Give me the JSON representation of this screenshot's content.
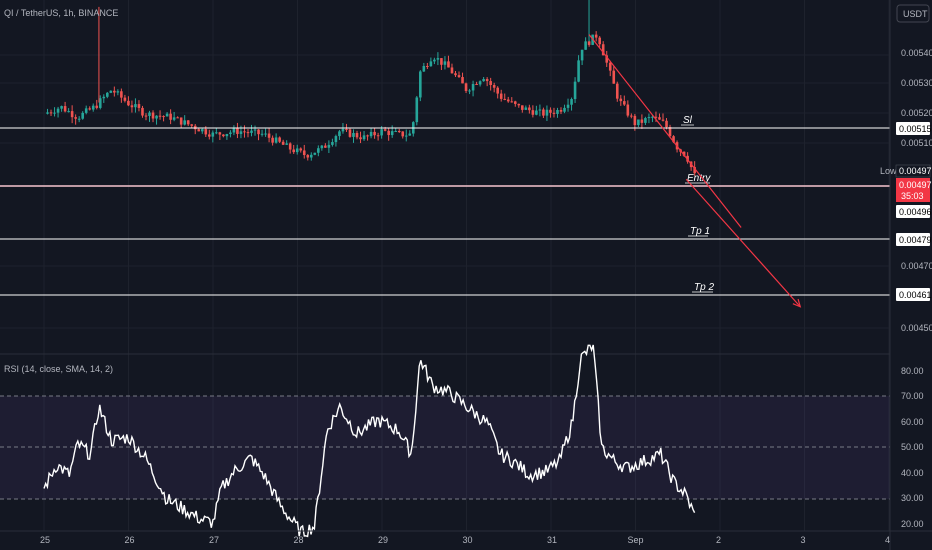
{
  "header": {
    "symbol_label": "QI / TetherUS, 1h, BINANCE",
    "currency_button": "USDT"
  },
  "price_axis": {
    "ticks": [
      "0.00540",
      "0.00530",
      "0.00520",
      "0.00510",
      "0.00470",
      "0.00450"
    ]
  },
  "levels": [
    {
      "label": "Sl",
      "price": 0.00515,
      "price_label": "0.00515"
    },
    {
      "label": "Entry",
      "price": 0.00496,
      "price_label": "0.00496"
    },
    {
      "label": "Tp 1",
      "price": 0.00479,
      "price_label": "0.00479"
    },
    {
      "label": "Tp 2",
      "price": 0.00461,
      "price_label": "0.00461"
    }
  ],
  "low_badge": {
    "label": "Low",
    "value": "0.00497"
  },
  "last_price_badge": {
    "value": "0.00497",
    "countdown": "35:03"
  },
  "rsi": {
    "title": "RSI (14, close, SMA, 14, 2)",
    "ticks": [
      "80.00",
      "70.00",
      "60.00",
      "50.00",
      "40.00",
      "30.00",
      "20.00"
    ],
    "upper_band": 70,
    "middle_band": 50,
    "lower_band": 30
  },
  "time_axis": {
    "labels": [
      "25",
      "26",
      "27",
      "28",
      "29",
      "30",
      "31",
      "Sep",
      "2",
      "3",
      "4"
    ]
  },
  "colors": {
    "background": "#131722",
    "bull": "#26a69a",
    "bear": "#ef5350",
    "level_line": "#ffffff",
    "entry_line": "#f7c5cf",
    "arrow": "#f23645",
    "rsi_line": "#ffffff",
    "rsi_band": "#7e57c2",
    "axis_text": "#b2b5be"
  },
  "chart_data": {
    "type": "candlestick",
    "price_scale": {
      "min": 0.00445,
      "max": 0.00548
    },
    "rsi_scale": {
      "min": 20,
      "max": 80
    },
    "price_path": [
      [
        25.0,
        0.00515
      ],
      [
        25.2,
        0.00517
      ],
      [
        25.4,
        0.00514
      ],
      [
        25.6,
        0.00517
      ],
      [
        25.8,
        0.00522
      ],
      [
        26.0,
        0.00518
      ],
      [
        26.2,
        0.00515
      ],
      [
        26.5,
        0.00514
      ],
      [
        26.8,
        0.00511
      ],
      [
        27.0,
        0.00509
      ],
      [
        27.3,
        0.0051
      ],
      [
        27.6,
        0.00509
      ],
      [
        27.9,
        0.00505
      ],
      [
        28.1,
        0.00503
      ],
      [
        28.3,
        0.00505
      ],
      [
        28.5,
        0.0051
      ],
      [
        28.8,
        0.00508
      ],
      [
        29.0,
        0.0051
      ],
      [
        29.2,
        0.00509
      ],
      [
        29.35,
        0.00509
      ],
      [
        29.45,
        0.00527
      ],
      [
        29.6,
        0.00532
      ],
      [
        29.8,
        0.00528
      ],
      [
        30.0,
        0.00522
      ],
      [
        30.2,
        0.00526
      ],
      [
        30.4,
        0.0052
      ],
      [
        30.6,
        0.00517
      ],
      [
        30.9,
        0.00515
      ],
      [
        31.1,
        0.00516
      ],
      [
        31.25,
        0.0052
      ],
      [
        31.35,
        0.00534
      ],
      [
        31.55,
        0.00538
      ],
      [
        31.8,
        0.00519
      ],
      [
        32.0,
        0.00512
      ],
      [
        32.2,
        0.00514
      ],
      [
        32.35,
        0.00512
      ],
      [
        32.5,
        0.00505
      ],
      [
        32.6,
        0.00503
      ],
      [
        32.7,
        0.00497
      ]
    ],
    "spikes": [
      {
        "x": 25.65,
        "high": 0.00546
      },
      {
        "x": 31.45,
        "high": 0.00554
      }
    ],
    "arrows": [
      {
        "from": [
          31.45,
          0.00538
        ],
        "to": [
          33.25,
          0.00482
        ]
      },
      {
        "from": [
          32.6,
          0.00496
        ],
        "to": [
          33.95,
          0.00459
        ]
      }
    ],
    "rsi_path": [
      [
        25.0,
        38
      ],
      [
        25.15,
        45
      ],
      [
        25.3,
        42
      ],
      [
        25.4,
        51
      ],
      [
        25.55,
        48
      ],
      [
        25.65,
        62
      ],
      [
        25.8,
        52
      ],
      [
        26.0,
        53
      ],
      [
        26.2,
        47
      ],
      [
        26.45,
        35
      ],
      [
        26.65,
        32
      ],
      [
        26.85,
        29
      ],
      [
        27.0,
        28
      ],
      [
        27.1,
        38
      ],
      [
        27.25,
        43
      ],
      [
        27.45,
        47
      ],
      [
        27.6,
        42
      ],
      [
        27.8,
        33
      ],
      [
        27.95,
        28
      ],
      [
        28.05,
        25
      ],
      [
        28.2,
        27
      ],
      [
        28.35,
        55
      ],
      [
        28.5,
        62
      ],
      [
        28.7,
        54
      ],
      [
        28.95,
        58
      ],
      [
        29.2,
        55
      ],
      [
        29.35,
        48
      ],
      [
        29.45,
        76
      ],
      [
        29.6,
        68
      ],
      [
        29.8,
        66
      ],
      [
        30.0,
        62
      ],
      [
        30.25,
        57
      ],
      [
        30.4,
        48
      ],
      [
        30.55,
        46
      ],
      [
        30.75,
        42
      ],
      [
        30.95,
        43
      ],
      [
        31.1,
        46
      ],
      [
        31.25,
        57
      ],
      [
        31.35,
        76
      ],
      [
        31.5,
        80
      ],
      [
        31.6,
        50
      ],
      [
        31.75,
        46
      ],
      [
        31.9,
        44
      ],
      [
        32.1,
        46
      ],
      [
        32.3,
        48
      ],
      [
        32.45,
        40
      ],
      [
        32.6,
        36
      ],
      [
        32.7,
        30
      ]
    ]
  }
}
